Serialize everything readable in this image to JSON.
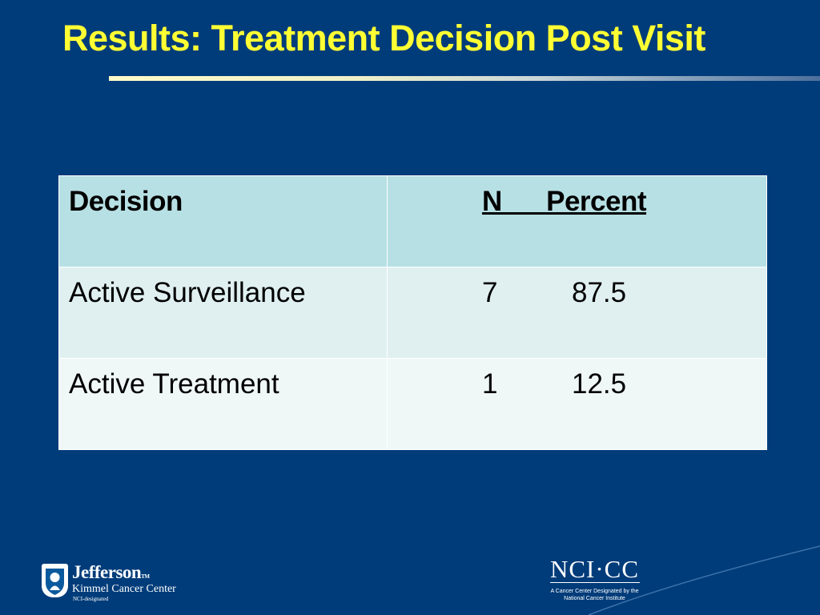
{
  "slide": {
    "title": "Results: Treatment Decision Post Visit"
  },
  "table": {
    "header": {
      "decision": "Decision",
      "n_percent": "N      Percent"
    },
    "rows": [
      {
        "decision": "Active Surveillance",
        "n": "7",
        "percent": "87.5"
      },
      {
        "decision": "Active Treatment",
        "n": "1",
        "percent": "12.5"
      }
    ]
  },
  "logos": {
    "jefferson": {
      "name": "Jefferson",
      "trademark": "TM",
      "subtitle": "Kimmel Cancer Center",
      "designation": "NCI-designated"
    },
    "ncicc": {
      "mark": "NCI·CC",
      "caption_line1": "A Cancer Center Designated by the",
      "caption_line2": "National Cancer Institute"
    }
  },
  "colors": {
    "background": "#003c7a",
    "title": "#ffff33",
    "header_fill": "#b7e0e4",
    "row1_fill": "#e0f0f1",
    "row2_fill": "#f0f7f7"
  }
}
